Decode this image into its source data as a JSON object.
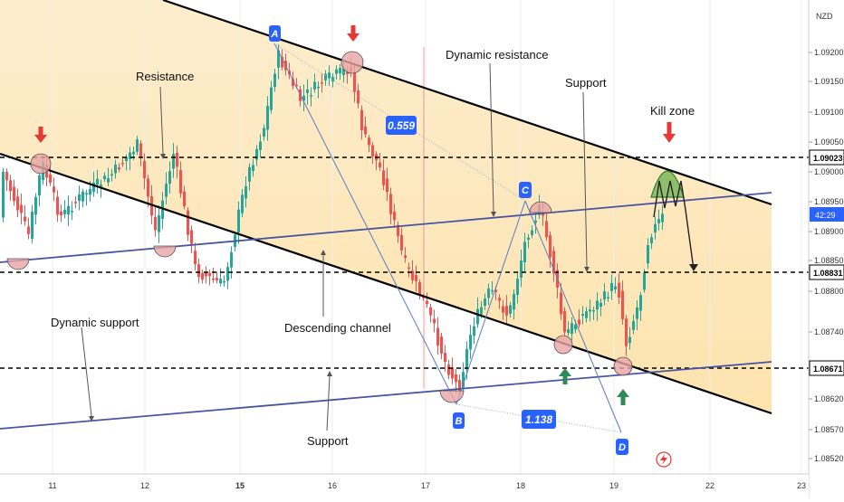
{
  "currency_label": "NZD",
  "colors": {
    "up": "#26a69a",
    "down": "#ef5350",
    "channel": "#000000",
    "dynamic_line": "#4a55a2",
    "label_blue": "#2962ff",
    "zone_fill": "#fde7b8",
    "kill_zone": "#6ab04c",
    "arrow_red": "#e53935",
    "arrow_green": "#2e8b57",
    "circle_fill": "#e8a5a5"
  },
  "price_axis": {
    "ticks": [
      "1.09200",
      "1.09150",
      "1.09100",
      "1.09050",
      "1.09000",
      "1.08950",
      "1.08900",
      "1.08850",
      "1.08800",
      "1.08740",
      "1.08620",
      "1.08570",
      "1.08520"
    ],
    "highlighted": [
      {
        "label": "1.09023",
        "style": "white"
      },
      {
        "label": "42:29",
        "style": "blue"
      },
      {
        "label": "1.08831",
        "style": "white"
      },
      {
        "label": "1.08671",
        "style": "white"
      }
    ]
  },
  "time_axis": {
    "ticks": [
      {
        "label": "11",
        "bold": false
      },
      {
        "label": "12",
        "bold": false
      },
      {
        "label": "15",
        "bold": true
      },
      {
        "label": "16",
        "bold": false
      },
      {
        "label": "17",
        "bold": false
      },
      {
        "label": "18",
        "bold": false
      },
      {
        "label": "19",
        "bold": false
      },
      {
        "label": "22",
        "bold": false
      },
      {
        "label": "23",
        "bold": false
      }
    ]
  },
  "annotations": {
    "resistance": "Resistance",
    "dynamic_resistance": "Dynamic resistance",
    "support_top": "Support",
    "kill_zone": "Kill zone",
    "dynamic_support": "Dynamic support",
    "descending_channel": "Descending channel",
    "support_bottom": "Support"
  },
  "pattern": {
    "points": [
      "A",
      "B",
      "C",
      "D"
    ],
    "ratio_1": "0.559",
    "ratio_2": "1.138"
  },
  "chart_data": {
    "type": "candlestick",
    "symbol_quote": "NZD",
    "x_ticks": [
      "11",
      "12",
      "15",
      "16",
      "17",
      "18",
      "19",
      "22",
      "23"
    ],
    "y_ticks": [
      1.092,
      1.0915,
      1.091,
      1.0905,
      1.09,
      1.0895,
      1.089,
      1.0885,
      1.088,
      1.0874,
      1.0862,
      1.0857,
      1.0852
    ],
    "horizontal_levels": [
      1.09023,
      1.08831,
      1.08671
    ],
    "current_price_countdown": "42:29",
    "harmonic_ratios": [
      "0.559",
      "1.138"
    ]
  }
}
